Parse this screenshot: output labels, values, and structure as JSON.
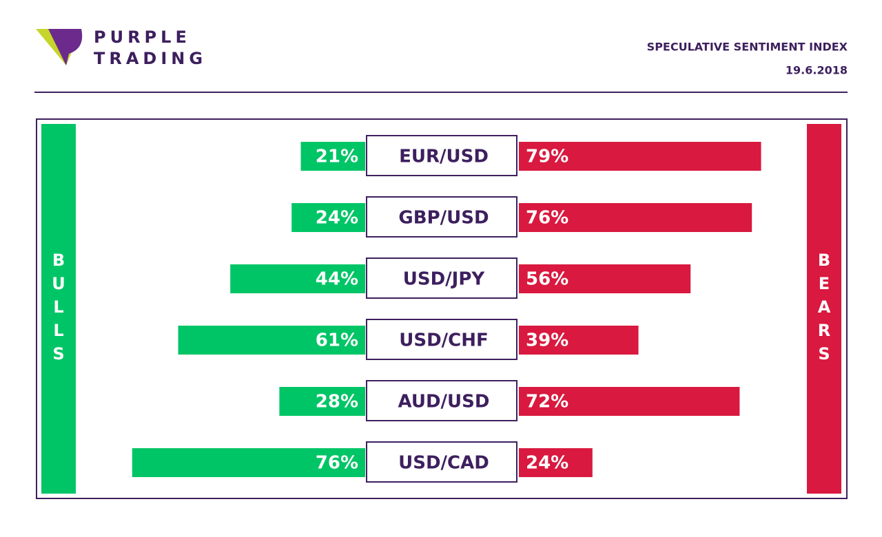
{
  "brand": [
    "PURPLE",
    "TRADING"
  ],
  "chart_data": {
    "type": "diverging_bar",
    "title": "SPECULATIVE SENTIMENT INDEX",
    "date": "19.6.2018",
    "categories": [
      "EUR/USD",
      "GBP/USD",
      "USD/JPY",
      "USD/CHF",
      "AUD/USD",
      "USD/CAD"
    ],
    "series": [
      {
        "name": "BULLS",
        "color": "#00c566",
        "values": [
          21,
          24,
          44,
          61,
          28,
          76
        ],
        "value_labels": [
          "21%",
          "24%",
          "44%",
          "61%",
          "28%",
          "76%"
        ]
      },
      {
        "name": "BEARS",
        "color": "#d9193f",
        "values": [
          79,
          76,
          56,
          39,
          72,
          24
        ],
        "value_labels": [
          "79%",
          "76%",
          "56%",
          "39%",
          "72%",
          "24%"
        ]
      }
    ]
  }
}
